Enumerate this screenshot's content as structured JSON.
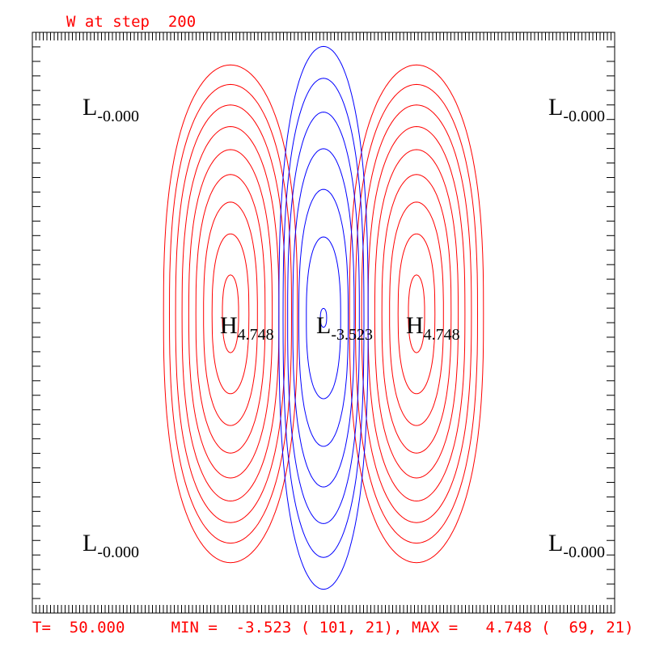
{
  "chart_data": {
    "type": "contour",
    "title": "W at step  200",
    "footer": "T=  50.000     MIN =  -3.523 ( 101, 21), MAX =   4.748 (  69, 21)",
    "min": -3.523,
    "max": 4.748,
    "contour_interval": 0.5,
    "positive_color": "#ff0000",
    "negative_color": "#0000ff",
    "positive_levels": [
      0.5,
      1.0,
      1.5,
      2.0,
      2.5,
      3.0,
      3.5,
      4.0,
      4.5
    ],
    "negative_levels": [
      -0.5,
      -1.0,
      -1.5,
      -2.0,
      -2.5,
      -3.0,
      -3.5
    ],
    "extrema": [
      {
        "type": "H",
        "letter": "H",
        "value": "4.748",
        "role": "left-max"
      },
      {
        "type": "L",
        "letter": "L",
        "value": "-3.523",
        "role": "center-min"
      },
      {
        "type": "H",
        "letter": "H",
        "value": "4.748",
        "role": "right-max"
      },
      {
        "type": "L",
        "letter": "L",
        "value": "-0.000",
        "role": "corner-top-left"
      },
      {
        "type": "L",
        "letter": "L",
        "value": "-0.000",
        "role": "corner-top-right"
      },
      {
        "type": "L",
        "letter": "L",
        "value": "-0.000",
        "role": "corner-bottom-left"
      },
      {
        "type": "L",
        "letter": "L",
        "value": "-0.000",
        "role": "corner-bottom-right"
      }
    ]
  }
}
